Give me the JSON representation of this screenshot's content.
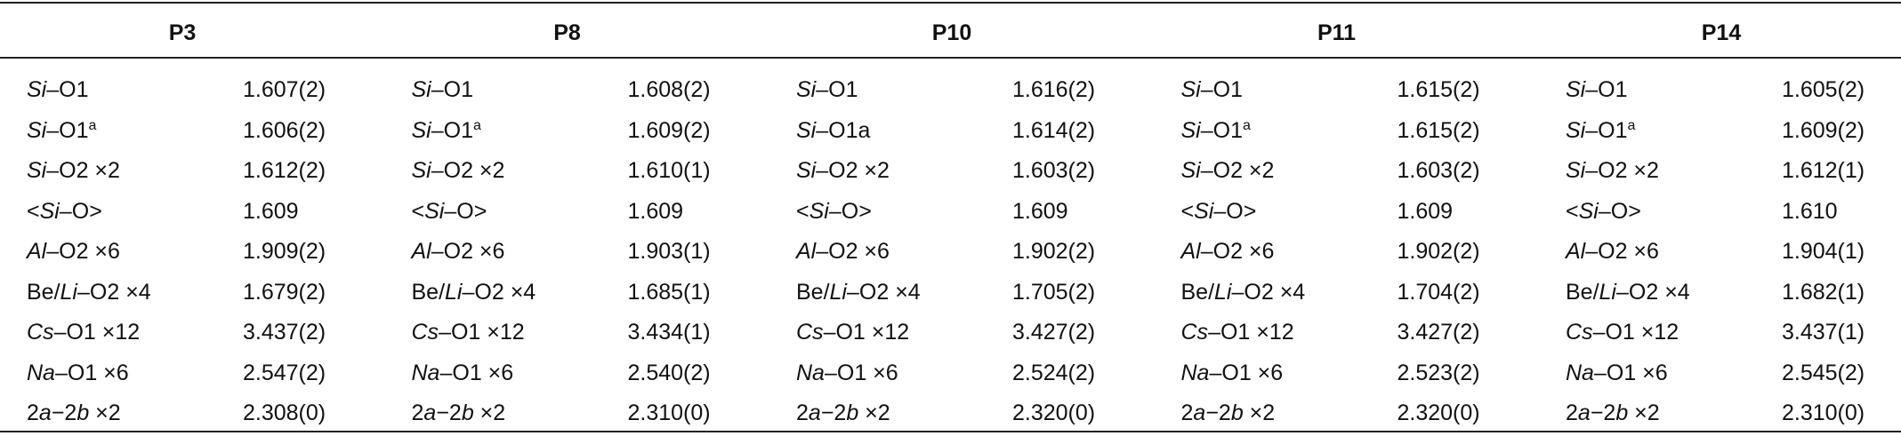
{
  "table": {
    "groups": [
      {
        "header": "P3",
        "rows": [
          {
            "label": [
              {
                "text": "Si",
                "italic": true
              },
              {
                "text": "–O1"
              }
            ],
            "value": "1.607(2)"
          },
          {
            "label": [
              {
                "text": "Si",
                "italic": true
              },
              {
                "text": "–O1"
              },
              {
                "text": "a",
                "superscript": true
              }
            ],
            "value": "1.606(2)"
          },
          {
            "label": [
              {
                "text": "Si",
                "italic": true
              },
              {
                "text": "–O2 ×2"
              }
            ],
            "value": "1.612(2)"
          },
          {
            "label": [
              {
                "text": "<"
              },
              {
                "text": "Si",
                "italic": true
              },
              {
                "text": "–O"
              },
              {
                "text": ">"
              }
            ],
            "value": "1.609"
          },
          {
            "label": [
              {
                "text": "Al",
                "italic": true
              },
              {
                "text": "–O2 ×6"
              }
            ],
            "value": "1.909(2)"
          },
          {
            "label": [
              {
                "text": "Be/"
              },
              {
                "text": "Li",
                "italic": true
              },
              {
                "text": "–O2 ×4"
              }
            ],
            "value": "1.679(2)"
          },
          {
            "label": [
              {
                "text": "Cs",
                "italic": true
              },
              {
                "text": "–O1 ×12"
              }
            ],
            "value": "3.437(2)"
          },
          {
            "label": [
              {
                "text": "Na",
                "italic": true
              },
              {
                "text": "–O1 ×6"
              }
            ],
            "value": "2.547(2)"
          },
          {
            "label": [
              {
                "text": "2"
              },
              {
                "text": "a",
                "italic": true
              },
              {
                "text": "−2"
              },
              {
                "text": "b",
                "italic": true
              },
              {
                "text": " ×2"
              }
            ],
            "value": "2.308(0)"
          }
        ]
      },
      {
        "header": "P8",
        "rows": [
          {
            "label": [
              {
                "text": "Si",
                "italic": true
              },
              {
                "text": "–O1"
              }
            ],
            "value": "1.608(2)"
          },
          {
            "label": [
              {
                "text": "Si",
                "italic": true
              },
              {
                "text": "–O1"
              },
              {
                "text": "a",
                "superscript": true
              }
            ],
            "value": "1.609(2)"
          },
          {
            "label": [
              {
                "text": "Si",
                "italic": true
              },
              {
                "text": "–O2 ×2"
              }
            ],
            "value": "1.610(1)"
          },
          {
            "label": [
              {
                "text": "<"
              },
              {
                "text": "Si",
                "italic": true
              },
              {
                "text": "–O"
              },
              {
                "text": ">"
              }
            ],
            "value": "1.609"
          },
          {
            "label": [
              {
                "text": "Al",
                "italic": true
              },
              {
                "text": "–O2 ×6"
              }
            ],
            "value": "1.903(1)"
          },
          {
            "label": [
              {
                "text": "Be/"
              },
              {
                "text": "Li",
                "italic": true
              },
              {
                "text": "–O2 ×4"
              }
            ],
            "value": "1.685(1)"
          },
          {
            "label": [
              {
                "text": "Cs",
                "italic": true
              },
              {
                "text": "–O1 ×12"
              }
            ],
            "value": "3.434(1)"
          },
          {
            "label": [
              {
                "text": "Na",
                "italic": true
              },
              {
                "text": "–O1 ×6"
              }
            ],
            "value": "2.540(2)"
          },
          {
            "label": [
              {
                "text": "2"
              },
              {
                "text": "a",
                "italic": true
              },
              {
                "text": "−2"
              },
              {
                "text": "b",
                "italic": true
              },
              {
                "text": " ×2"
              }
            ],
            "value": "2.310(0)"
          }
        ]
      },
      {
        "header": "P10",
        "rows": [
          {
            "label": [
              {
                "text": "Si",
                "italic": true
              },
              {
                "text": "–O1"
              }
            ],
            "value": "1.616(2)"
          },
          {
            "label": [
              {
                "text": "Si",
                "italic": true
              },
              {
                "text": "–O1a"
              }
            ],
            "value": "1.614(2)"
          },
          {
            "label": [
              {
                "text": "Si",
                "italic": true
              },
              {
                "text": "–O2 ×2"
              }
            ],
            "value": "1.603(2)"
          },
          {
            "label": [
              {
                "text": "<"
              },
              {
                "text": "Si",
                "italic": true
              },
              {
                "text": "–O"
              },
              {
                "text": ">"
              }
            ],
            "value": "1.609"
          },
          {
            "label": [
              {
                "text": "Al",
                "italic": true
              },
              {
                "text": "–O2 ×6"
              }
            ],
            "value": "1.902(2)"
          },
          {
            "label": [
              {
                "text": "Be/"
              },
              {
                "text": "Li",
                "italic": true
              },
              {
                "text": "–O2 ×4"
              }
            ],
            "value": "1.705(2)"
          },
          {
            "label": [
              {
                "text": "Cs",
                "italic": true
              },
              {
                "text": "–O1 ×12"
              }
            ],
            "value": "3.427(2)"
          },
          {
            "label": [
              {
                "text": "Na",
                "italic": true
              },
              {
                "text": "–O1 ×6"
              }
            ],
            "value": "2.524(2)"
          },
          {
            "label": [
              {
                "text": "2"
              },
              {
                "text": "a",
                "italic": true
              },
              {
                "text": "−2"
              },
              {
                "text": "b",
                "italic": true
              },
              {
                "text": " ×2"
              }
            ],
            "value": "2.320(0)"
          }
        ]
      },
      {
        "header": "P11",
        "rows": [
          {
            "label": [
              {
                "text": "Si",
                "italic": true
              },
              {
                "text": "–O1"
              }
            ],
            "value": "1.615(2)"
          },
          {
            "label": [
              {
                "text": "Si",
                "italic": true
              },
              {
                "text": "–O1"
              },
              {
                "text": "a",
                "superscript": true
              }
            ],
            "value": "1.615(2)"
          },
          {
            "label": [
              {
                "text": "Si",
                "italic": true
              },
              {
                "text": "–O2 ×2"
              }
            ],
            "value": "1.603(2)"
          },
          {
            "label": [
              {
                "text": "<"
              },
              {
                "text": "Si",
                "italic": true
              },
              {
                "text": "–O"
              },
              {
                "text": ">"
              }
            ],
            "value": "1.609"
          },
          {
            "label": [
              {
                "text": "Al",
                "italic": true
              },
              {
                "text": "–O2 ×6"
              }
            ],
            "value": "1.902(2)"
          },
          {
            "label": [
              {
                "text": "Be/"
              },
              {
                "text": "Li",
                "italic": true
              },
              {
                "text": "–O2 ×4"
              }
            ],
            "value": "1.704(2)"
          },
          {
            "label": [
              {
                "text": "Cs",
                "italic": true
              },
              {
                "text": "–O1 ×12"
              }
            ],
            "value": "3.427(2)"
          },
          {
            "label": [
              {
                "text": "Na",
                "italic": true
              },
              {
                "text": "–O1 ×6"
              }
            ],
            "value": "2.523(2)"
          },
          {
            "label": [
              {
                "text": "2"
              },
              {
                "text": "a",
                "italic": true
              },
              {
                "text": "−2"
              },
              {
                "text": "b",
                "italic": true
              },
              {
                "text": " ×2"
              }
            ],
            "value": "2.320(0)"
          }
        ]
      },
      {
        "header": "P14",
        "rows": [
          {
            "label": [
              {
                "text": "Si",
                "italic": true
              },
              {
                "text": "–O1"
              }
            ],
            "value": "1.605(2)"
          },
          {
            "label": [
              {
                "text": "Si",
                "italic": true
              },
              {
                "text": "–O1"
              },
              {
                "text": "a",
                "superscript": true
              }
            ],
            "value": "1.609(2)"
          },
          {
            "label": [
              {
                "text": "Si",
                "italic": true
              },
              {
                "text": "–O2 ×2"
              }
            ],
            "value": "1.612(1)"
          },
          {
            "label": [
              {
                "text": "<"
              },
              {
                "text": "Si",
                "italic": true
              },
              {
                "text": "–O"
              },
              {
                "text": ">"
              }
            ],
            "value": "1.610"
          },
          {
            "label": [
              {
                "text": "Al",
                "italic": true
              },
              {
                "text": "–O2 ×6"
              }
            ],
            "value": "1.904(1)"
          },
          {
            "label": [
              {
                "text": "Be/"
              },
              {
                "text": "Li",
                "italic": true
              },
              {
                "text": "–O2 ×4"
              }
            ],
            "value": "1.682(1)"
          },
          {
            "label": [
              {
                "text": "Cs",
                "italic": true
              },
              {
                "text": "–O1 ×12"
              }
            ],
            "value": "3.437(1)"
          },
          {
            "label": [
              {
                "text": "Na",
                "italic": true
              },
              {
                "text": "–O1 ×6"
              }
            ],
            "value": "2.545(2)"
          },
          {
            "label": [
              {
                "text": "2"
              },
              {
                "text": "a",
                "italic": true
              },
              {
                "text": "−2"
              },
              {
                "text": "b",
                "italic": true
              },
              {
                "text": " ×2"
              }
            ],
            "value": "2.310(0)"
          }
        ]
      }
    ]
  }
}
